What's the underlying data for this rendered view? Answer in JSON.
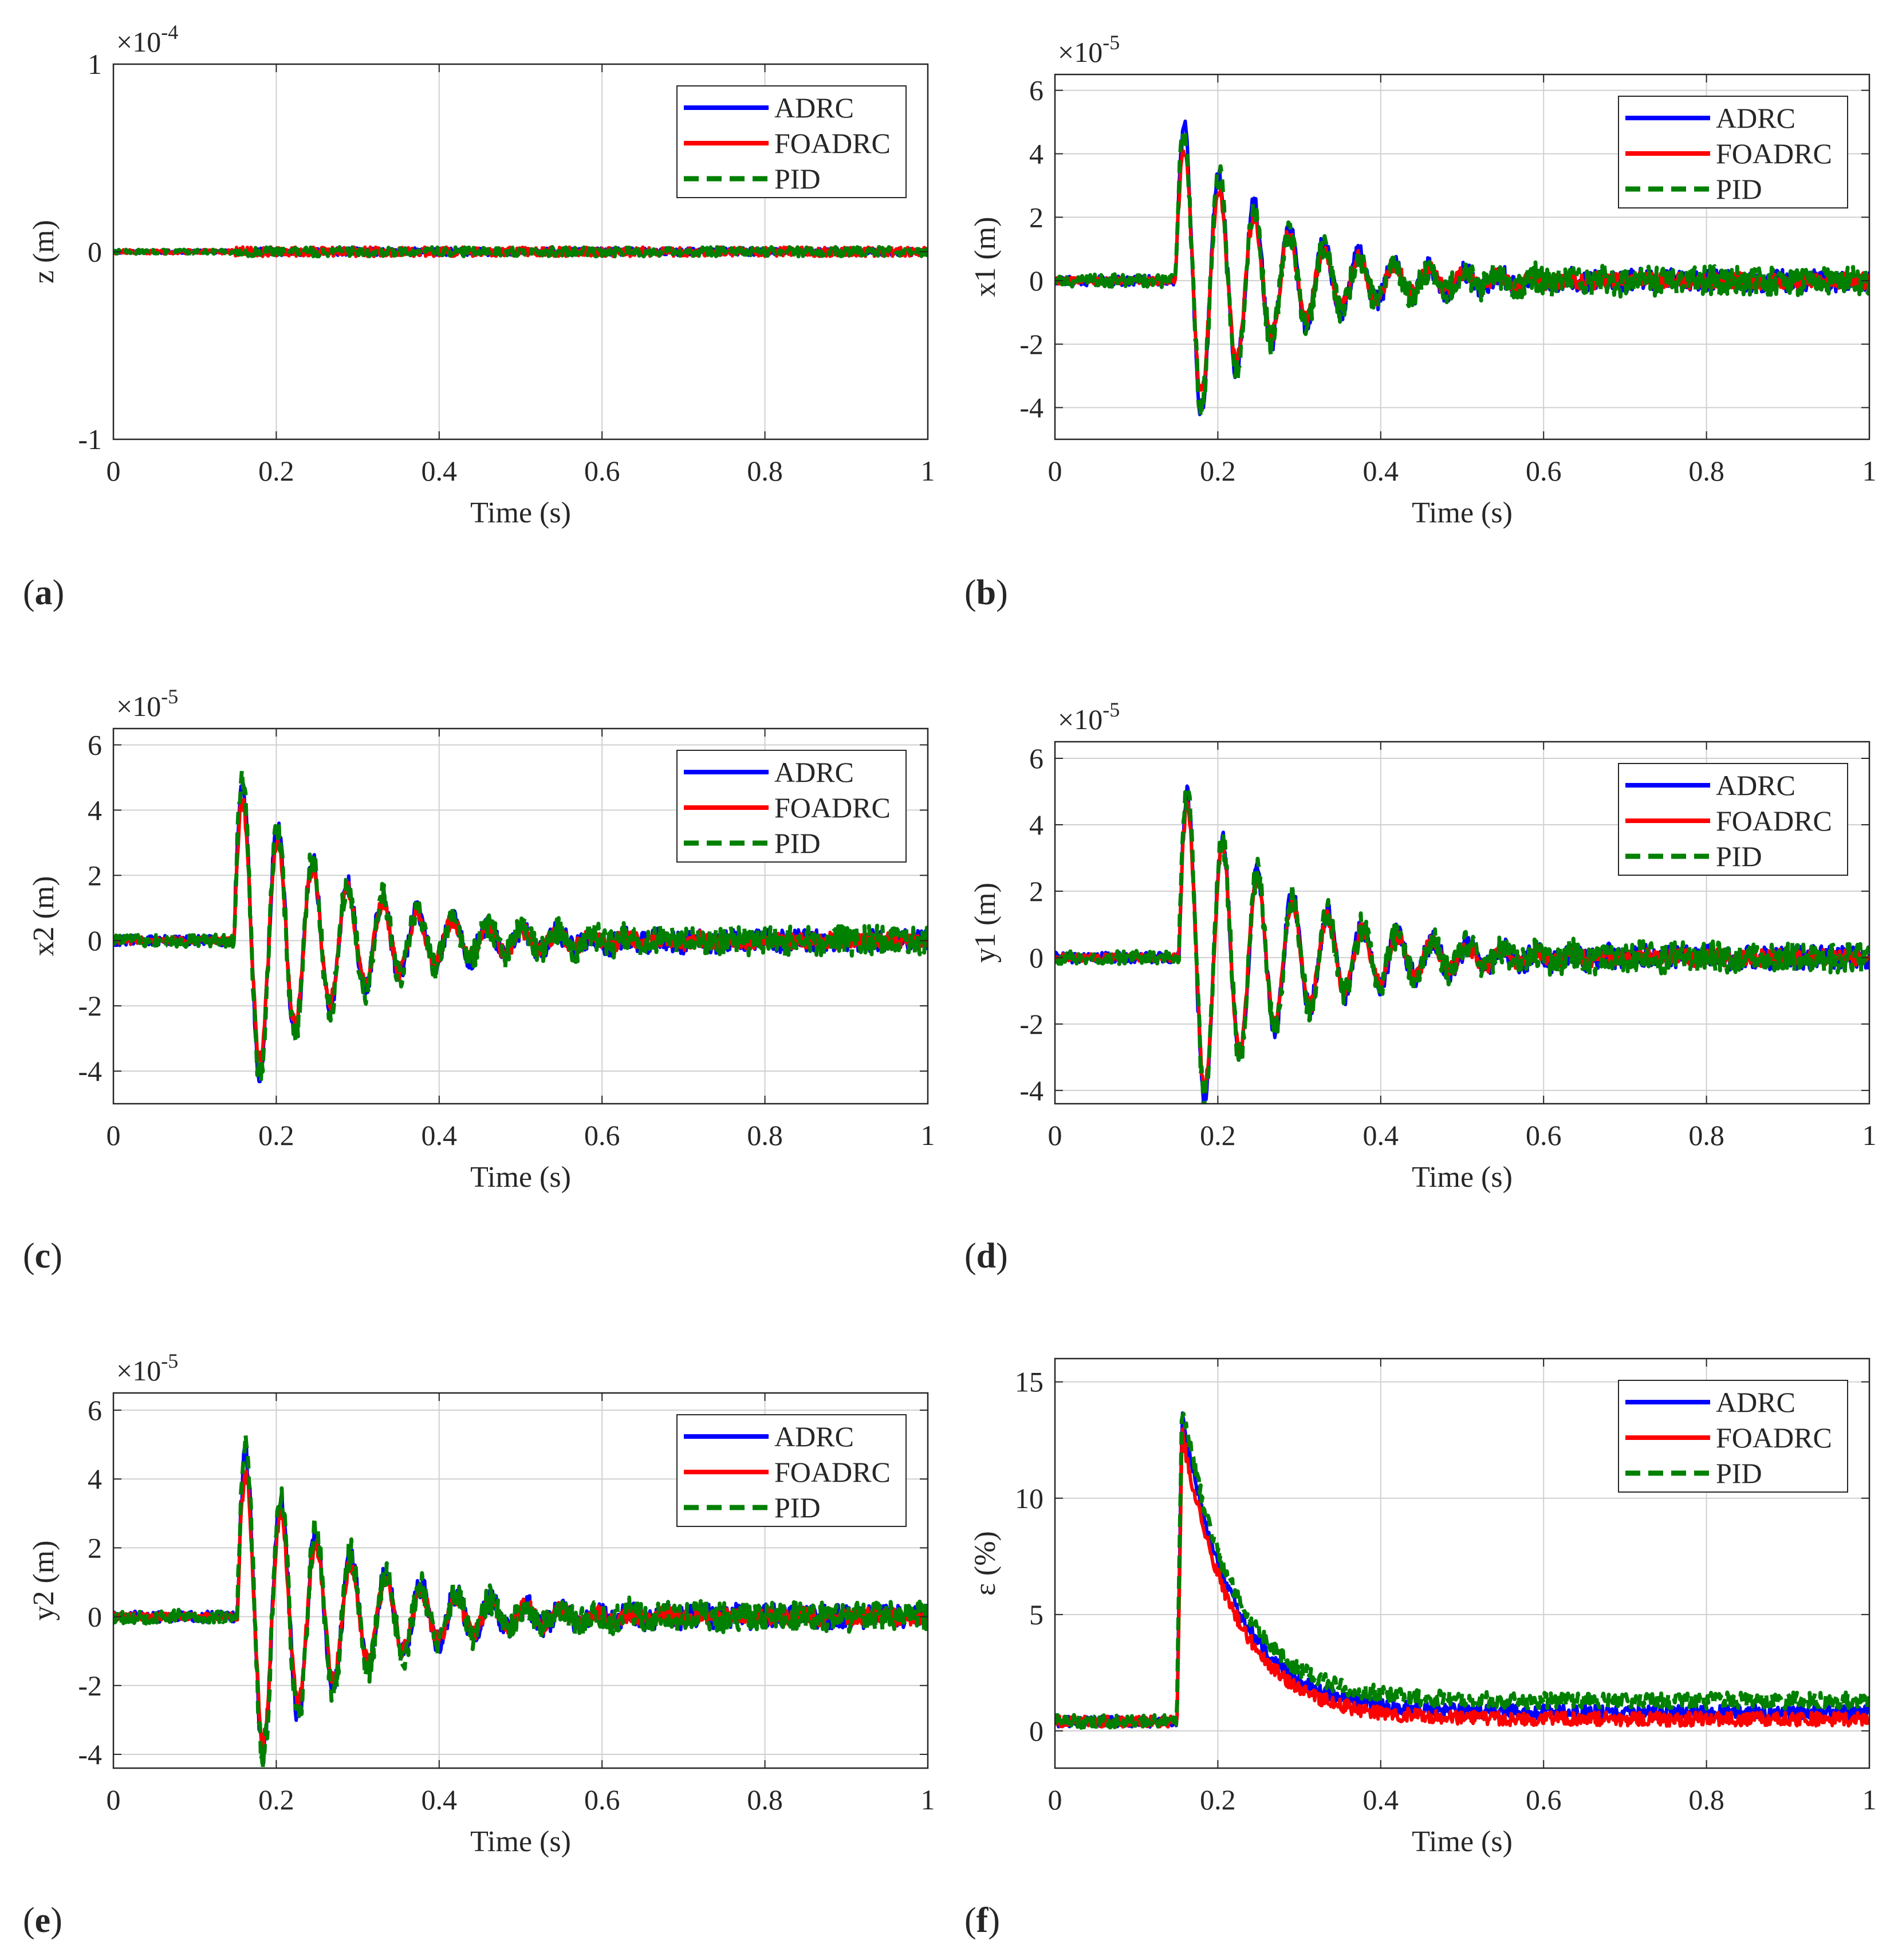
{
  "chart_data": [
    {
      "panel": "(a)",
      "letter": "a",
      "type": "line",
      "ylabel": "z (m)",
      "xlabel": "Time (s)",
      "xlim": [
        0,
        1
      ],
      "ylim": [
        -1,
        1
      ],
      "xticks": [
        0,
        0.2,
        0.4,
        0.6,
        0.8,
        1
      ],
      "xtick_labels": [
        "0",
        "0.2",
        "0.4",
        "0.6",
        "0.8",
        "1"
      ],
      "yticks": [
        -1,
        0,
        1
      ],
      "ytick_labels": [
        "-1",
        "0",
        "1"
      ],
      "exponent_base": "×10",
      "exponent_power": "-4",
      "legend_location": "top-right",
      "series": [
        {
          "name": "ADRC",
          "color": "#0000ff",
          "style": "solid",
          "amp": 0,
          "noise": 0.02,
          "seed": 11
        },
        {
          "name": "FOADRC",
          "color": "#ff0000",
          "style": "solid",
          "amp": 0,
          "noise": 0.025,
          "seed": 12
        },
        {
          "name": "PID",
          "color": "#008000",
          "style": "dashed",
          "amp": 0,
          "noise": 0.025,
          "seed": 13
        }
      ],
      "response": {
        "kind": "osc",
        "t0": 0.15,
        "period": 0.043,
        "decay": 0.14,
        "pre_noise_scale": 1
      }
    },
    {
      "panel": "(b)",
      "letter": "b",
      "type": "line",
      "ylabel": "x1 (m)",
      "xlabel": "Time (s)",
      "xlim": [
        0,
        1
      ],
      "ylim": [
        -5,
        6.5
      ],
      "xticks": [
        0,
        0.2,
        0.4,
        0.6,
        0.8,
        1
      ],
      "xtick_labels": [
        "0",
        "0.2",
        "0.4",
        "0.6",
        "0.8",
        "1"
      ],
      "yticks": [
        -4,
        -2,
        0,
        2,
        4,
        6
      ],
      "ytick_labels": [
        "-4",
        "-2",
        "0",
        "2",
        "4",
        "6"
      ],
      "exponent_base": "×10",
      "exponent_power": "-5",
      "legend_location": "top-right",
      "series": [
        {
          "name": "ADRC",
          "color": "#0000ff",
          "style": "solid",
          "amp": 5.3,
          "noise": 0.35,
          "seed": 21
        },
        {
          "name": "FOADRC",
          "color": "#ff0000",
          "style": "solid",
          "amp": 4.6,
          "noise": 0.25,
          "seed": 22
        },
        {
          "name": "PID",
          "color": "#008000",
          "style": "dashed",
          "amp": 5.2,
          "noise": 0.45,
          "seed": 23
        }
      ],
      "response": {
        "kind": "osc",
        "t0": 0.148,
        "period": 0.043,
        "decay": 0.12
      }
    },
    {
      "panel": "(c)",
      "letter": "c",
      "type": "line",
      "ylabel": "x2 (m)",
      "xlabel": "Time (s)",
      "xlim": [
        0,
        1
      ],
      "ylim": [
        -5,
        6.5
      ],
      "xticks": [
        0,
        0.2,
        0.4,
        0.6,
        0.8,
        1
      ],
      "xtick_labels": [
        "0",
        "0.2",
        "0.4",
        "0.6",
        "0.8",
        "1"
      ],
      "yticks": [
        -4,
        -2,
        0,
        2,
        4,
        6
      ],
      "ytick_labels": [
        "-4",
        "-2",
        "0",
        "2",
        "4",
        "6"
      ],
      "exponent_base": "×10",
      "exponent_power": "-5",
      "legend_location": "top-right",
      "series": [
        {
          "name": "ADRC",
          "color": "#0000ff",
          "style": "solid",
          "amp": 5.2,
          "noise": 0.35,
          "seed": 31
        },
        {
          "name": "FOADRC",
          "color": "#ff0000",
          "style": "solid",
          "amp": 4.6,
          "noise": 0.25,
          "seed": 32
        },
        {
          "name": "PID",
          "color": "#008000",
          "style": "dashed",
          "amp": 5.3,
          "noise": 0.45,
          "seed": 33
        }
      ],
      "response": {
        "kind": "osc",
        "t0": 0.148,
        "period": 0.043,
        "decay": 0.13
      }
    },
    {
      "panel": "(d)",
      "letter": "d",
      "type": "line",
      "ylabel": "y1 (m)",
      "xlabel": "Time (s)",
      "xlim": [
        0,
        1
      ],
      "ylim": [
        -4.4,
        6.5
      ],
      "xticks": [
        0,
        0.2,
        0.4,
        0.6,
        0.8,
        1
      ],
      "xtick_labels": [
        "0",
        "0.2",
        "0.4",
        "0.6",
        "0.8",
        "1"
      ],
      "yticks": [
        -4,
        -2,
        0,
        2,
        4,
        6
      ],
      "ytick_labels": [
        "-4",
        "-2",
        "0",
        "2",
        "4",
        "6"
      ],
      "exponent_base": "×10",
      "exponent_power": "-5",
      "legend_location": "top-right",
      "series": [
        {
          "name": "ADRC",
          "color": "#0000ff",
          "style": "solid",
          "amp": 5.3,
          "noise": 0.35,
          "seed": 41
        },
        {
          "name": "FOADRC",
          "color": "#ff0000",
          "style": "solid",
          "amp": 5.0,
          "noise": 0.25,
          "seed": 42
        },
        {
          "name": "PID",
          "color": "#008000",
          "style": "dashed",
          "amp": 5.4,
          "noise": 0.45,
          "seed": 43
        }
      ],
      "response": {
        "kind": "osc",
        "t0": 0.152,
        "period": 0.043,
        "decay": 0.13
      }
    },
    {
      "panel": "(e)",
      "letter": "e",
      "type": "line",
      "ylabel": "y2 (m)",
      "xlabel": "Time (s)",
      "xlim": [
        0,
        1
      ],
      "ylim": [
        -4.4,
        6.5
      ],
      "xticks": [
        0,
        0.2,
        0.4,
        0.6,
        0.8,
        1
      ],
      "xtick_labels": [
        "0",
        "0.2",
        "0.4",
        "0.6",
        "0.8",
        "1"
      ],
      "yticks": [
        -4,
        -2,
        0,
        2,
        4,
        6
      ],
      "ytick_labels": [
        "-4",
        "-2",
        "0",
        "2",
        "4",
        "6"
      ],
      "exponent_base": "×10",
      "exponent_power": "-5",
      "legend_location": "top-right",
      "series": [
        {
          "name": "ADRC",
          "color": "#0000ff",
          "style": "solid",
          "amp": 5.1,
          "noise": 0.35,
          "seed": 51
        },
        {
          "name": "FOADRC",
          "color": "#ff0000",
          "style": "solid",
          "amp": 4.5,
          "noise": 0.25,
          "seed": 52
        },
        {
          "name": "PID",
          "color": "#008000",
          "style": "dashed",
          "amp": 5.4,
          "noise": 0.45,
          "seed": 53
        }
      ],
      "response": {
        "kind": "osc",
        "t0": 0.152,
        "period": 0.043,
        "decay": 0.13
      }
    },
    {
      "panel": "(f)",
      "letter": "f",
      "type": "line",
      "ylabel": "ε (%)",
      "xlabel": "Time (s)",
      "xlim": [
        0,
        1
      ],
      "ylim": [
        -1.6,
        16
      ],
      "xticks": [
        0,
        0.2,
        0.4,
        0.6,
        0.8,
        1
      ],
      "xtick_labels": [
        "0",
        "0.2",
        "0.4",
        "0.6",
        "0.8",
        "1"
      ],
      "yticks": [
        0,
        5,
        10,
        15
      ],
      "ytick_labels": [
        "0",
        "5",
        "10",
        "15"
      ],
      "exponent_base": "",
      "exponent_power": "",
      "legend_location": "top-right",
      "series": [
        {
          "name": "ADRC",
          "color": "#0000ff",
          "style": "solid",
          "amp": 13.5,
          "floor": 0.8,
          "noise": 0.3,
          "seed": 61
        },
        {
          "name": "FOADRC",
          "color": "#ff0000",
          "style": "solid",
          "amp": 12.8,
          "floor": 0.5,
          "noise": 0.3,
          "seed": 62
        },
        {
          "name": "PID",
          "color": "#008000",
          "style": "dashed",
          "amp": 14.0,
          "floor": 1.3,
          "noise": 0.35,
          "seed": 63
        }
      ],
      "response": {
        "kind": "spike",
        "t0": 0.15,
        "decay": 0.065,
        "base": 0.4
      }
    }
  ]
}
